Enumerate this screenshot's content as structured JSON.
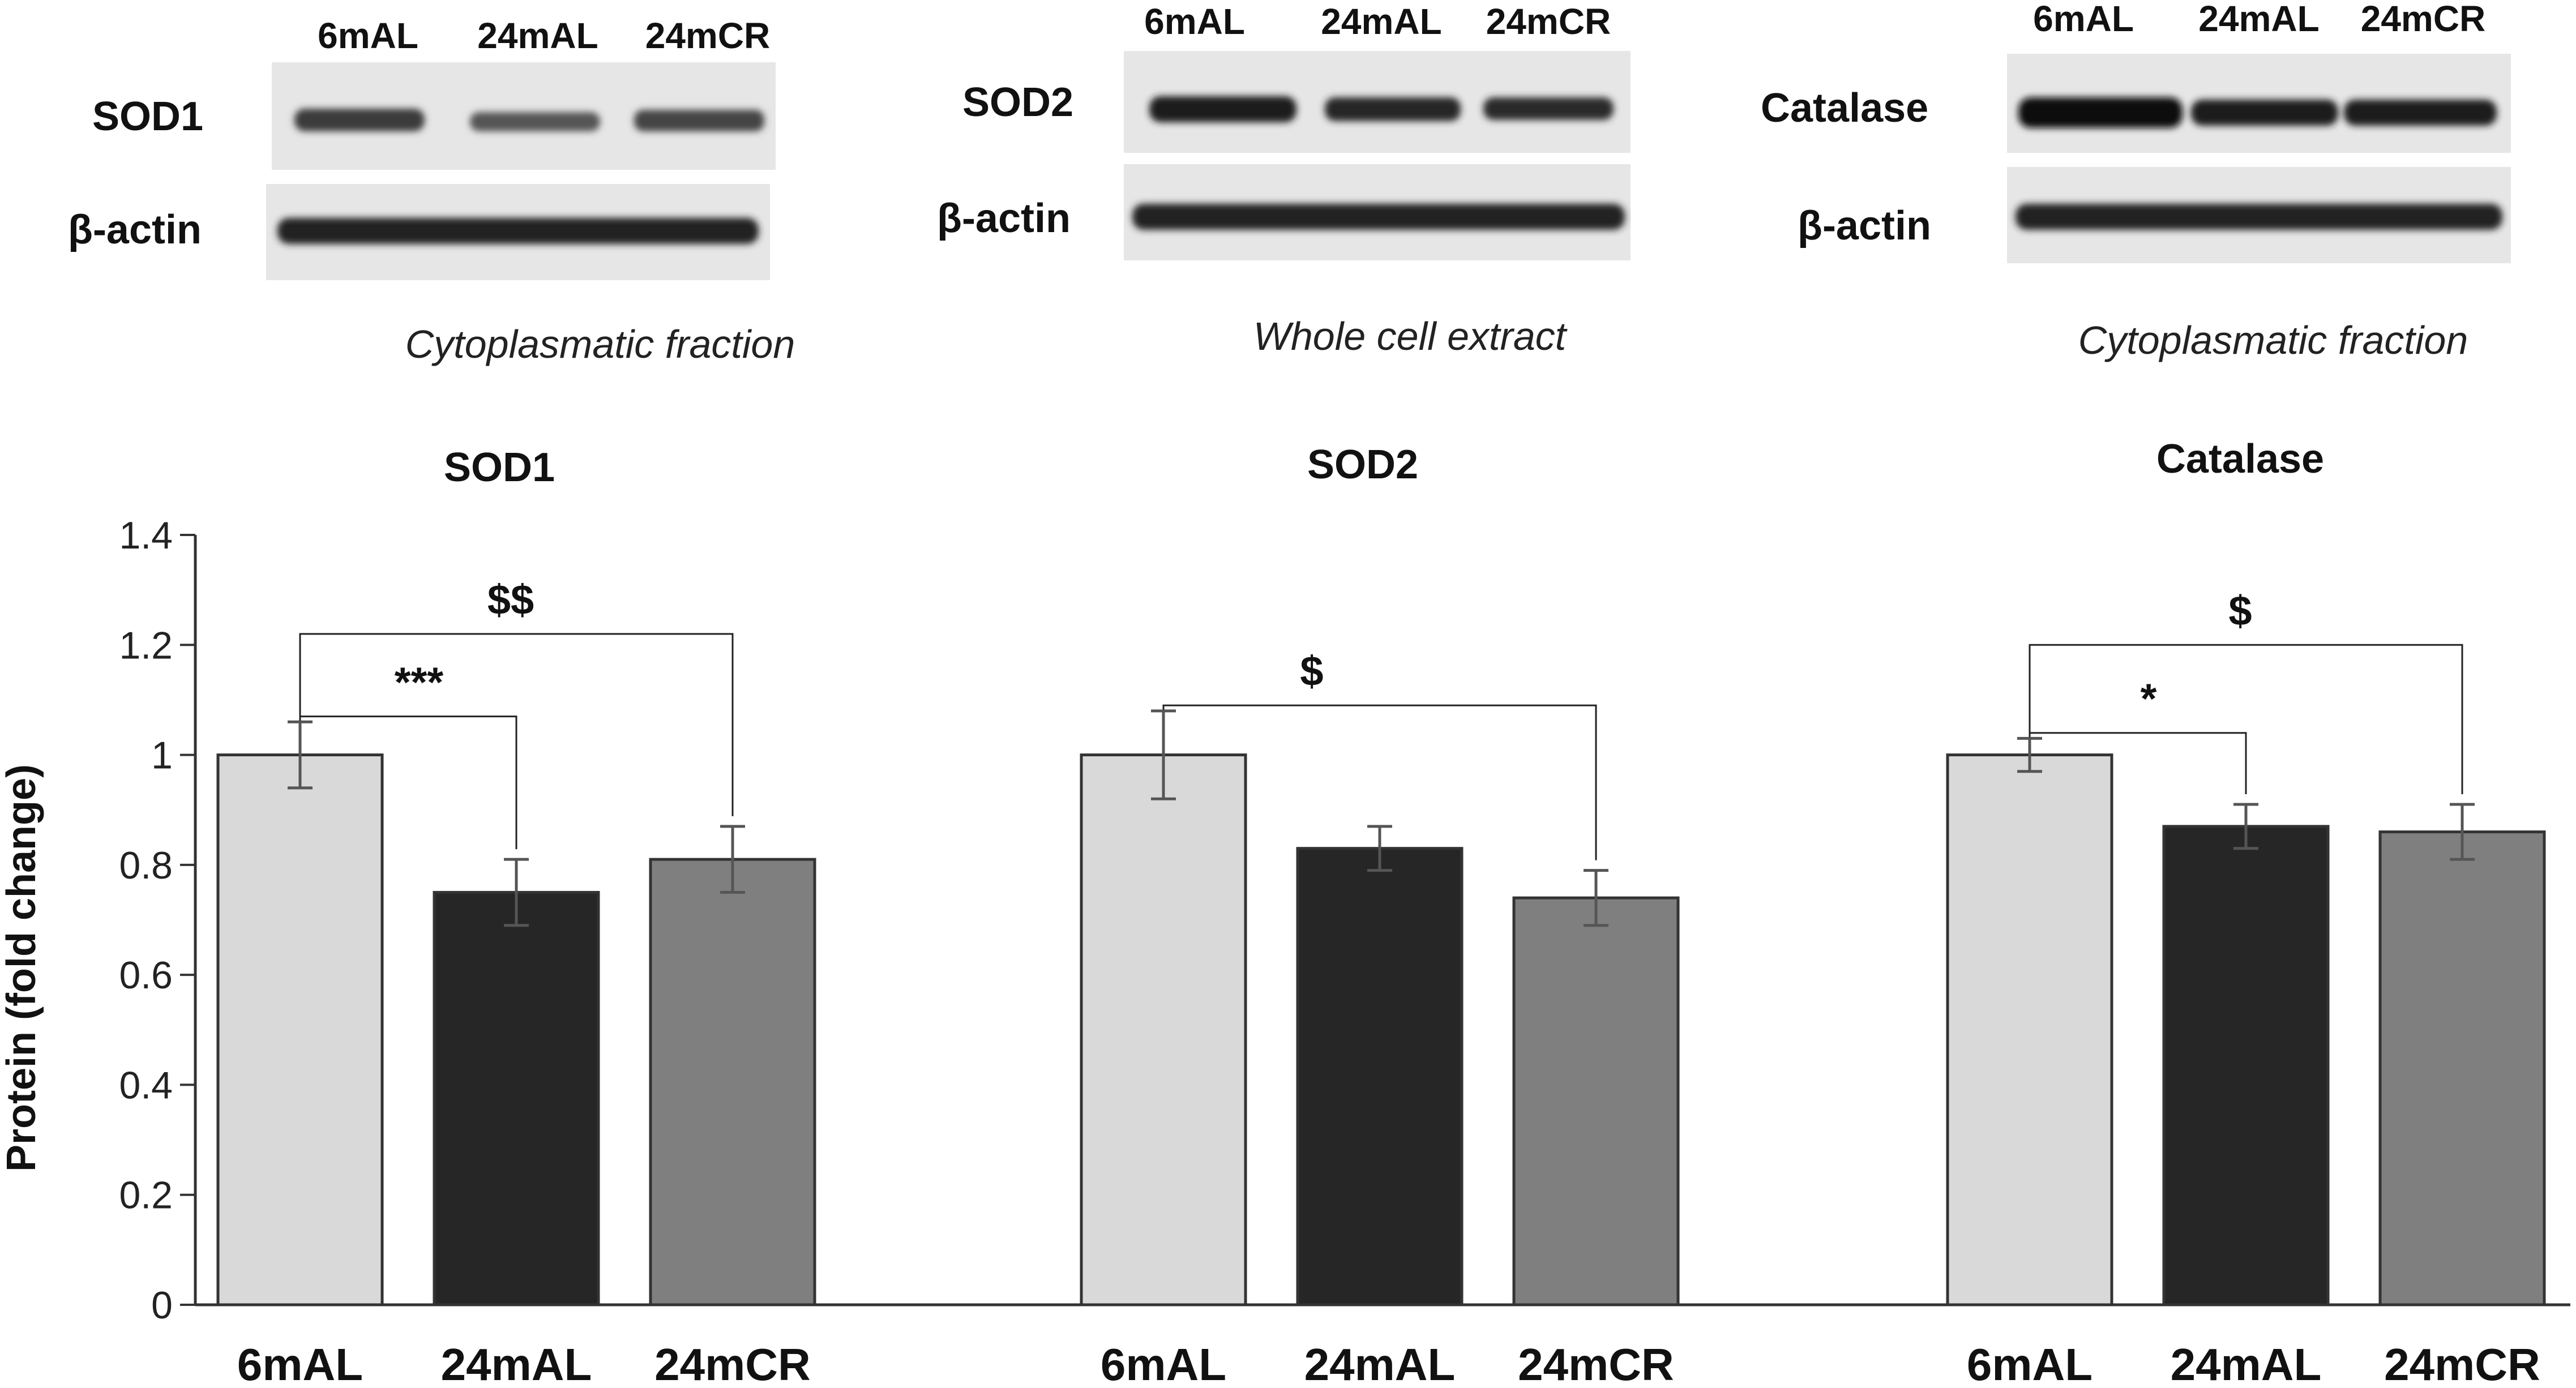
{
  "blots": [
    {
      "lanes": [
        "6mAL",
        "24mAL",
        "24mCR"
      ],
      "target": "SOD1",
      "loading": "β-actin",
      "caption": "Cytoplasmatic fraction"
    },
    {
      "lanes": [
        "6mAL",
        "24mAL",
        "24mCR"
      ],
      "target": "SOD2",
      "loading": "β-actin",
      "caption": "Whole cell extract"
    },
    {
      "lanes": [
        "6mAL",
        "24mAL",
        "24mCR"
      ],
      "target": "Catalase",
      "loading": "β-actin",
      "caption": "Cytoplasmatic fraction"
    }
  ],
  "chart_data": {
    "type": "bar",
    "ylabel": "Protein (fold change)",
    "ylim": [
      0,
      1.4
    ],
    "yticks": [
      "0",
      "0.2",
      "0.4",
      "0.6",
      "0.8",
      "1",
      "1.2",
      "1.4"
    ],
    "yticks_values": [
      0,
      0.2,
      0.4,
      0.6,
      0.8,
      1.0,
      1.2,
      1.4
    ],
    "categories": [
      "6mAL",
      "24mAL",
      "24mCR"
    ],
    "colors": [
      "#d9d9d9",
      "#262626",
      "#7f7f7f"
    ],
    "groups": [
      {
        "title": "SOD1",
        "values": [
          1.0,
          0.75,
          0.81
        ],
        "errors": [
          0.06,
          0.06,
          0.06
        ],
        "significance": [
          {
            "from": 0,
            "to": 1,
            "label": "***",
            "height": 1.07
          },
          {
            "from": 0,
            "to": 2,
            "label": "$$",
            "height": 1.22
          }
        ]
      },
      {
        "title": "SOD2",
        "values": [
          1.0,
          0.83,
          0.74
        ],
        "errors": [
          0.08,
          0.04,
          0.05
        ],
        "significance": [
          {
            "from": 0,
            "to": 2,
            "label": "$",
            "height": 1.09
          }
        ]
      },
      {
        "title": "Catalase",
        "values": [
          1.0,
          0.87,
          0.86
        ],
        "errors": [
          0.03,
          0.04,
          0.05
        ],
        "significance": [
          {
            "from": 0,
            "to": 1,
            "label": "*",
            "height": 1.04
          },
          {
            "from": 0,
            "to": 2,
            "label": "$",
            "height": 1.2
          }
        ]
      }
    ]
  }
}
